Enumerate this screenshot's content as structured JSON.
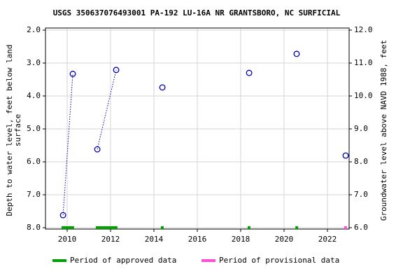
{
  "chart_data": {
    "type": "line",
    "title": "USGS 350637076493001 PA-192 LU-16A NR GRANTSBORO, NC SURFICIAL",
    "ylabel": [
      "Depth to water level, feet below land",
      "surface"
    ],
    "y2label": "Groundwater level above NAVD 1988, feet",
    "x": [
      2009.81,
      2010.26,
      2011.39,
      2012.26,
      2014.39,
      2018.39,
      2020.58,
      2022.84
    ],
    "series": [
      {
        "name": "Depth to water level",
        "color": "#0000b0",
        "values": [
          7.62,
          3.33,
          5.62,
          3.21,
          3.74,
          3.3,
          2.72,
          5.81
        ]
      }
    ],
    "xlim": [
      2009,
      2023
    ],
    "xticks": [
      2010,
      2012,
      2014,
      2016,
      2018,
      2020,
      2022
    ],
    "ylim": [
      2,
      8
    ],
    "inverted": true,
    "yticks": [
      {
        "value": 2,
        "label": "2.0"
      },
      {
        "value": 3,
        "label": "3.0"
      },
      {
        "value": 4,
        "label": "4.0"
      },
      {
        "value": 5,
        "label": "5.0"
      },
      {
        "value": 6,
        "label": "6.0"
      },
      {
        "value": 7,
        "label": "7.0"
      },
      {
        "value": 8,
        "label": "8.0"
      }
    ],
    "y2lim": [
      12,
      6
    ],
    "y2ticks": [
      {
        "value": 12,
        "label": "12.0"
      },
      {
        "value": 11,
        "label": "11.0"
      },
      {
        "value": 10,
        "label": "10.0"
      },
      {
        "value": 9,
        "label": "9.0"
      },
      {
        "value": 8,
        "label": "8.0"
      },
      {
        "value": 7,
        "label": "7.0"
      },
      {
        "value": 6,
        "label": "6.0"
      }
    ],
    "grid": true,
    "periods": [
      {
        "name": "Period of approved data",
        "color": "#00a000",
        "spans": [
          [
            2009.74,
            2010.32
          ],
          [
            2011.32,
            2012.32
          ],
          [
            2014.32,
            2014.45
          ],
          [
            2018.32,
            2018.45
          ],
          [
            2020.52,
            2020.65
          ]
        ]
      },
      {
        "name": "Period of provisional data",
        "color": "#ff4fd8",
        "spans": [
          [
            2022.77,
            2022.9
          ]
        ]
      }
    ]
  }
}
